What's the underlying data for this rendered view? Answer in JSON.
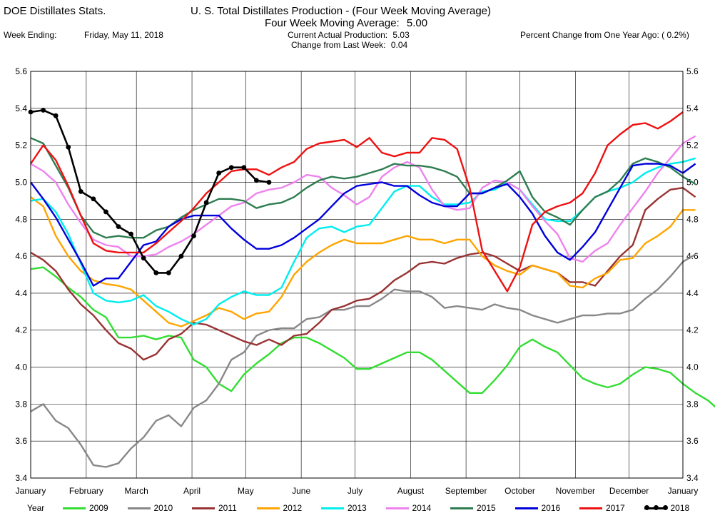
{
  "header": {
    "app_title": "DOE Distillates Stats.",
    "chart_title": "U. S. Total Distillates Production - (Four Week Moving Average)",
    "moving_avg_label": "Four Week Moving Average:",
    "moving_avg_value": "5.00",
    "week_ending_label": "Week Ending:",
    "week_ending_value": "Friday, May 11, 2018",
    "current_label": "Current Actual Production:",
    "current_value": "5.03",
    "change_week_label": "Change from Last Week:",
    "change_week_value": "0.04",
    "pct_change_label": "Percent Change from One Year Ago:",
    "pct_change_value": "( 0.2%)"
  },
  "legend": {
    "title": "Year"
  },
  "chart_data": {
    "type": "line",
    "title": "U. S. Total Distillates Production - (Four Week Moving Average)",
    "ylim": [
      3.4,
      5.6
    ],
    "yticks": [
      "3.4",
      "3.6",
      "3.8",
      "4.0",
      "4.2",
      "4.4",
      "4.6",
      "4.8",
      "5.0",
      "5.2",
      "5.4",
      "5.6"
    ],
    "xlim": [
      1,
      53
    ],
    "xtick_weeks": [
      1,
      5.43,
      9.43,
      13.86,
      18.14,
      22.57,
      26.86,
      31.29,
      35.71,
      40,
      44.43,
      48.71,
      53
    ],
    "xtick_labels": [
      "January",
      "February",
      "March",
      "April",
      "May",
      "June",
      "July",
      "August",
      "September",
      "October",
      "November",
      "December",
      "January"
    ],
    "grid": true,
    "series": [
      {
        "name": "2009",
        "color": "#33dd33",
        "marker": false,
        "values": [
          4.53,
          4.54,
          4.49,
          4.43,
          4.38,
          4.31,
          4.27,
          4.16,
          4.16,
          4.17,
          4.15,
          4.17,
          4.16,
          4.04,
          4.0,
          3.91,
          3.87,
          3.96,
          4.02,
          4.07,
          4.13,
          4.16,
          4.16,
          4.13,
          4.09,
          4.05,
          3.99,
          3.99,
          4.02,
          4.05,
          4.08,
          4.08,
          4.04,
          3.98,
          3.92,
          3.86,
          3.86,
          3.93,
          4.01,
          4.11,
          4.15,
          4.11,
          4.08,
          4.01,
          3.94,
          3.91,
          3.89,
          3.91,
          3.96,
          4.0,
          3.99,
          3.97,
          3.91,
          3.86,
          3.82,
          3.76
        ]
      },
      {
        "name": "2010",
        "color": "#888888",
        "marker": false,
        "values": [
          3.76,
          3.8,
          3.71,
          3.67,
          3.58,
          3.47,
          3.46,
          3.48,
          3.56,
          3.62,
          3.71,
          3.74,
          3.68,
          3.78,
          3.82,
          3.91,
          4.04,
          4.08,
          4.17,
          4.2,
          4.21,
          4.21,
          4.26,
          4.27,
          4.31,
          4.31,
          4.33,
          4.33,
          4.37,
          4.42,
          4.41,
          4.41,
          4.38,
          4.32,
          4.33,
          4.32,
          4.31,
          4.34,
          4.32,
          4.31,
          4.28,
          4.26,
          4.24,
          4.26,
          4.28,
          4.28,
          4.29,
          4.29,
          4.31,
          4.37,
          4.42,
          4.49,
          4.57,
          4.61
        ]
      },
      {
        "name": "2011",
        "color": "#993333",
        "marker": false,
        "values": [
          4.62,
          4.58,
          4.52,
          4.42,
          4.34,
          4.28,
          4.2,
          4.13,
          4.1,
          4.04,
          4.07,
          4.15,
          4.18,
          4.24,
          4.23,
          4.2,
          4.17,
          4.14,
          4.12,
          4.15,
          4.12,
          4.17,
          4.18,
          4.24,
          4.31,
          4.33,
          4.36,
          4.37,
          4.41,
          4.47,
          4.51,
          4.56,
          4.57,
          4.56,
          4.59,
          4.61,
          4.62,
          4.6,
          4.56,
          4.52,
          4.55,
          4.53,
          4.51,
          4.46,
          4.46,
          4.44,
          4.52,
          4.6,
          4.66,
          4.85,
          4.91,
          4.96,
          4.97,
          4.92
        ]
      },
      {
        "name": "2012",
        "color": "#ffa500",
        "marker": false,
        "values": [
          4.92,
          4.87,
          4.71,
          4.6,
          4.52,
          4.47,
          4.45,
          4.44,
          4.42,
          4.36,
          4.3,
          4.24,
          4.22,
          4.25,
          4.28,
          4.32,
          4.3,
          4.26,
          4.29,
          4.3,
          4.38,
          4.5,
          4.57,
          4.62,
          4.66,
          4.69,
          4.67,
          4.67,
          4.67,
          4.69,
          4.71,
          4.69,
          4.69,
          4.67,
          4.69,
          4.69,
          4.6,
          4.55,
          4.52,
          4.5,
          4.55,
          4.53,
          4.51,
          4.44,
          4.43,
          4.48,
          4.51,
          4.58,
          4.59,
          4.67,
          4.71,
          4.76,
          4.85,
          4.85
        ]
      },
      {
        "name": "2013",
        "color": "#00eeee",
        "marker": false,
        "values": [
          4.9,
          4.91,
          4.84,
          4.72,
          4.56,
          4.4,
          4.36,
          4.35,
          4.36,
          4.39,
          4.33,
          4.3,
          4.26,
          4.23,
          4.26,
          4.34,
          4.38,
          4.41,
          4.39,
          4.39,
          4.43,
          4.57,
          4.7,
          4.75,
          4.76,
          4.73,
          4.76,
          4.77,
          4.86,
          4.95,
          4.98,
          4.98,
          4.92,
          4.88,
          4.88,
          4.89,
          4.95,
          4.96,
          5.0,
          4.96,
          4.88,
          4.8,
          4.79,
          4.79,
          4.85,
          4.92,
          4.95,
          4.97,
          5.0,
          5.05,
          5.08,
          5.1,
          5.11,
          5.13
        ]
      },
      {
        "name": "2014",
        "color": "#ee82ee",
        "marker": false,
        "values": [
          5.1,
          5.06,
          5.0,
          4.88,
          4.78,
          4.69,
          4.66,
          4.65,
          4.6,
          4.6,
          4.61,
          4.65,
          4.68,
          4.72,
          4.77,
          4.82,
          4.87,
          4.89,
          4.94,
          4.96,
          4.97,
          5.0,
          5.04,
          5.03,
          4.97,
          4.93,
          4.88,
          4.92,
          5.03,
          5.08,
          5.11,
          5.08,
          4.96,
          4.87,
          4.85,
          4.86,
          4.97,
          5.01,
          5.0,
          4.96,
          4.87,
          4.79,
          4.72,
          4.59,
          4.57,
          4.63,
          4.67,
          4.77,
          4.86,
          4.95,
          5.05,
          5.13,
          5.21,
          5.25
        ]
      },
      {
        "name": "2015",
        "color": "#2e7d50",
        "marker": false,
        "values": [
          5.24,
          5.21,
          5.09,
          4.97,
          4.82,
          4.73,
          4.7,
          4.71,
          4.7,
          4.7,
          4.74,
          4.76,
          4.81,
          4.85,
          4.88,
          4.91,
          4.91,
          4.9,
          4.86,
          4.88,
          4.89,
          4.92,
          4.97,
          5.01,
          5.03,
          5.02,
          5.03,
          5.05,
          5.07,
          5.1,
          5.09,
          5.09,
          5.08,
          5.06,
          5.03,
          4.94,
          4.94,
          4.97,
          5.01,
          5.06,
          4.92,
          4.84,
          4.81,
          4.77,
          4.85,
          4.92,
          4.95,
          5.01,
          5.1,
          5.13,
          5.11,
          5.08,
          5.03,
          4.99
        ]
      },
      {
        "name": "2016",
        "color": "#0000dd",
        "marker": false,
        "values": [
          5.0,
          4.91,
          4.81,
          4.69,
          4.57,
          4.44,
          4.48,
          4.48,
          4.57,
          4.66,
          4.68,
          4.76,
          4.8,
          4.82,
          4.82,
          4.82,
          4.75,
          4.69,
          4.64,
          4.64,
          4.66,
          4.7,
          4.75,
          4.8,
          4.87,
          4.94,
          4.98,
          4.99,
          5.0,
          4.98,
          4.98,
          4.93,
          4.89,
          4.87,
          4.87,
          4.94,
          4.94,
          4.97,
          4.99,
          4.92,
          4.83,
          4.71,
          4.62,
          4.58,
          4.65,
          4.73,
          4.85,
          4.97,
          5.09,
          5.1,
          5.1,
          5.09,
          5.05,
          5.1
        ]
      },
      {
        "name": "2017",
        "color": "#ee1111",
        "marker": false,
        "values": [
          5.1,
          5.2,
          5.12,
          4.98,
          4.82,
          4.67,
          4.63,
          4.62,
          4.62,
          4.62,
          4.67,
          4.73,
          4.79,
          4.86,
          4.94,
          5.0,
          5.06,
          5.07,
          5.07,
          5.04,
          5.08,
          5.11,
          5.18,
          5.21,
          5.22,
          5.23,
          5.19,
          5.24,
          5.16,
          5.14,
          5.16,
          5.16,
          5.24,
          5.23,
          5.18,
          4.97,
          4.63,
          4.52,
          4.41,
          4.54,
          4.77,
          4.84,
          4.87,
          4.89,
          4.94,
          5.05,
          5.2,
          5.26,
          5.31,
          5.32,
          5.29,
          5.33,
          5.38
        ]
      },
      {
        "name": "2018",
        "color": "#000000",
        "marker": true,
        "values": [
          5.38,
          5.39,
          5.36,
          5.19,
          4.95,
          4.91,
          4.84,
          4.76,
          4.72,
          4.59,
          4.51,
          4.51,
          4.6,
          4.71,
          4.89,
          5.05,
          5.08,
          5.08,
          5.01,
          5.0
        ]
      }
    ]
  }
}
